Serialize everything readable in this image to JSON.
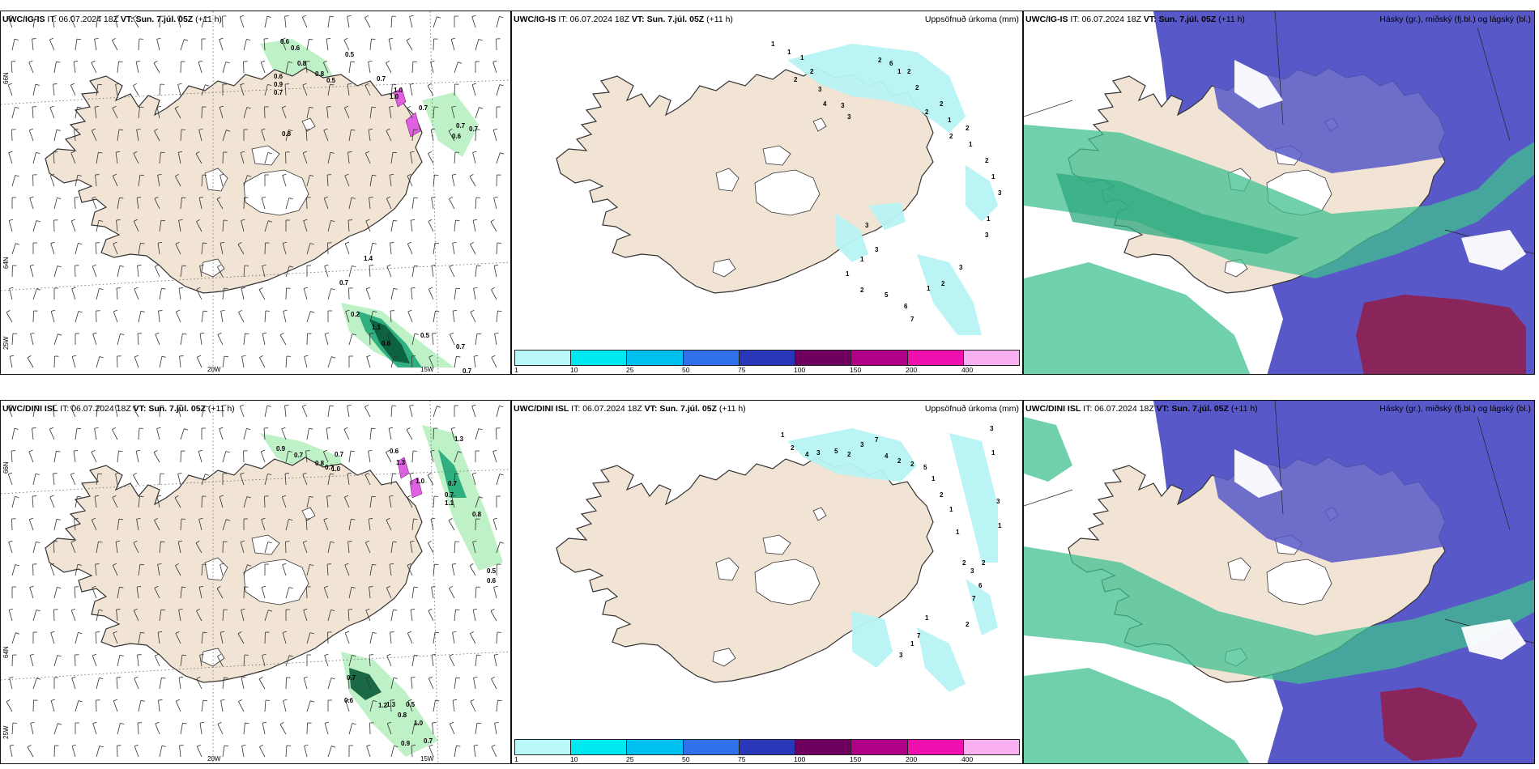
{
  "panels": [
    {
      "id": "r1c1",
      "model": "UWC/IG-IS",
      "it_label": "IT:",
      "it_value": "06.07.2024 18Z",
      "vt_label": "VT:",
      "vt_value": "Sun. 7.júl. 05Z",
      "lead": "(+11 h)",
      "right_title": "",
      "type": "wind",
      "axis_labels": {
        "lat_top": "66N",
        "lat_mid": "64N",
        "lon_left": "25W",
        "lon_mid": "20W",
        "lon_right": "15W"
      },
      "values": [
        "0.6",
        "0.5",
        "0.6",
        "0.8",
        "0.6",
        "0.9",
        "0.7",
        "0.8",
        "0.5",
        "0.7",
        "1.0",
        "0.7",
        "0.7",
        "0.6",
        "0.7",
        "0.8",
        "1.4",
        "0.7",
        "0.2",
        "1.1",
        "0.6",
        "0.5",
        "0.7",
        "0.7",
        "1.0"
      ]
    },
    {
      "id": "r1c2",
      "model": "UWC/IG-IS",
      "it_label": "IT:",
      "it_value": "06.07.2024 18Z",
      "vt_label": "VT:",
      "vt_value": "Sun. 7.júl. 05Z",
      "lead": "(+11 h)",
      "right_title": "Uppsöfnuð úrkoma (mm)",
      "type": "precip",
      "values": [
        "1",
        "1",
        "1",
        "2",
        "2",
        "3",
        "4",
        "3",
        "3",
        "2",
        "6",
        "1",
        "2",
        "2",
        "2",
        "2",
        "1",
        "2",
        "2",
        "1",
        "2",
        "1",
        "3",
        "1",
        "3",
        "3",
        "2",
        "1",
        "6",
        "7",
        "5",
        "2",
        "1",
        "3",
        "1",
        "3"
      ]
    },
    {
      "id": "r1c3",
      "model": "UWC/IG-IS",
      "it_label": "IT:",
      "it_value": "06.07.2024 18Z",
      "vt_label": "VT:",
      "vt_value": "Sun. 7.júl. 05Z",
      "lead": "(+11 h)",
      "right_title": "Hásky (gr.), miðský (fj.bl.) og lágský (bl.)",
      "type": "cloud"
    },
    {
      "id": "r2c1",
      "model": "UWC/DINI ISL",
      "it_label": "IT:",
      "it_value": "06.07.2024 18Z",
      "vt_label": "VT:",
      "vt_value": "Sun. 7.júl. 05Z",
      "lead": "(+11 h)",
      "right_title": "",
      "type": "wind",
      "axis_labels": {
        "lat_top": "66N",
        "lat_mid": "64N",
        "lon_left": "25W",
        "lon_mid": "20W",
        "lon_right": "15W"
      },
      "values": [
        "1.3",
        "0.9",
        "0.7",
        "0.8",
        "0.7",
        "1.0",
        "0.7",
        "1.3",
        "0.6",
        "1.0",
        "0.7",
        "0.7",
        "0.8",
        "0.5",
        "0.6",
        "1.1",
        "0.7",
        "0.6",
        "1.3",
        "0.8",
        "0.5",
        "1.0",
        "0.9",
        "0.7",
        "1.2"
      ]
    },
    {
      "id": "r2c2",
      "model": "UWC/DINI ISL",
      "it_label": "IT:",
      "it_value": "06.07.2024 18Z",
      "vt_label": "VT:",
      "vt_value": "Sun. 7.júl. 05Z",
      "lead": "(+11 h)",
      "right_title": "Uppsöfnuð úrkoma (mm)",
      "type": "precip",
      "values": [
        "1",
        "2",
        "4",
        "3",
        "5",
        "2",
        "3",
        "7",
        "4",
        "2",
        "2",
        "5",
        "1",
        "2",
        "1",
        "1",
        "2",
        "3",
        "3",
        "1",
        "3",
        "1",
        "2",
        "6",
        "7",
        "2",
        "1",
        "7",
        "1",
        "3"
      ]
    },
    {
      "id": "r2c3",
      "model": "UWC/DINI ISL",
      "it_label": "IT:",
      "it_value": "06.07.2024 18Z",
      "vt_label": "VT:",
      "vt_value": "Sun. 7.júl. 05Z",
      "lead": "(+11 h)",
      "right_title": "Hásky (gr.), miðský (fj.bl.) og lágský (bl.)",
      "type": "cloud"
    }
  ],
  "precip_legend": {
    "ticks": [
      "1",
      "10",
      "25",
      "50",
      "75",
      "100",
      "150",
      "200",
      "400"
    ],
    "colors": [
      "#b8f8f8",
      "#00e8f0",
      "#00c0f0",
      "#3070e8",
      "#2838b8",
      "#700060",
      "#b00088",
      "#f010b0",
      "#f8b0f0"
    ]
  },
  "colors": {
    "land": "#f2e4d4",
    "coast": "#333333",
    "ice": "#ffffff",
    "precip_light": "#b7f3f3",
    "green_light": "#b8f0c0",
    "green_mid": "#20a878",
    "green_dark": "#0a5a3a",
    "magenta": "#e060e0",
    "cloud_high": "#40c090",
    "cloud_mid": "#5858c8",
    "cloud_low": "#902050"
  }
}
